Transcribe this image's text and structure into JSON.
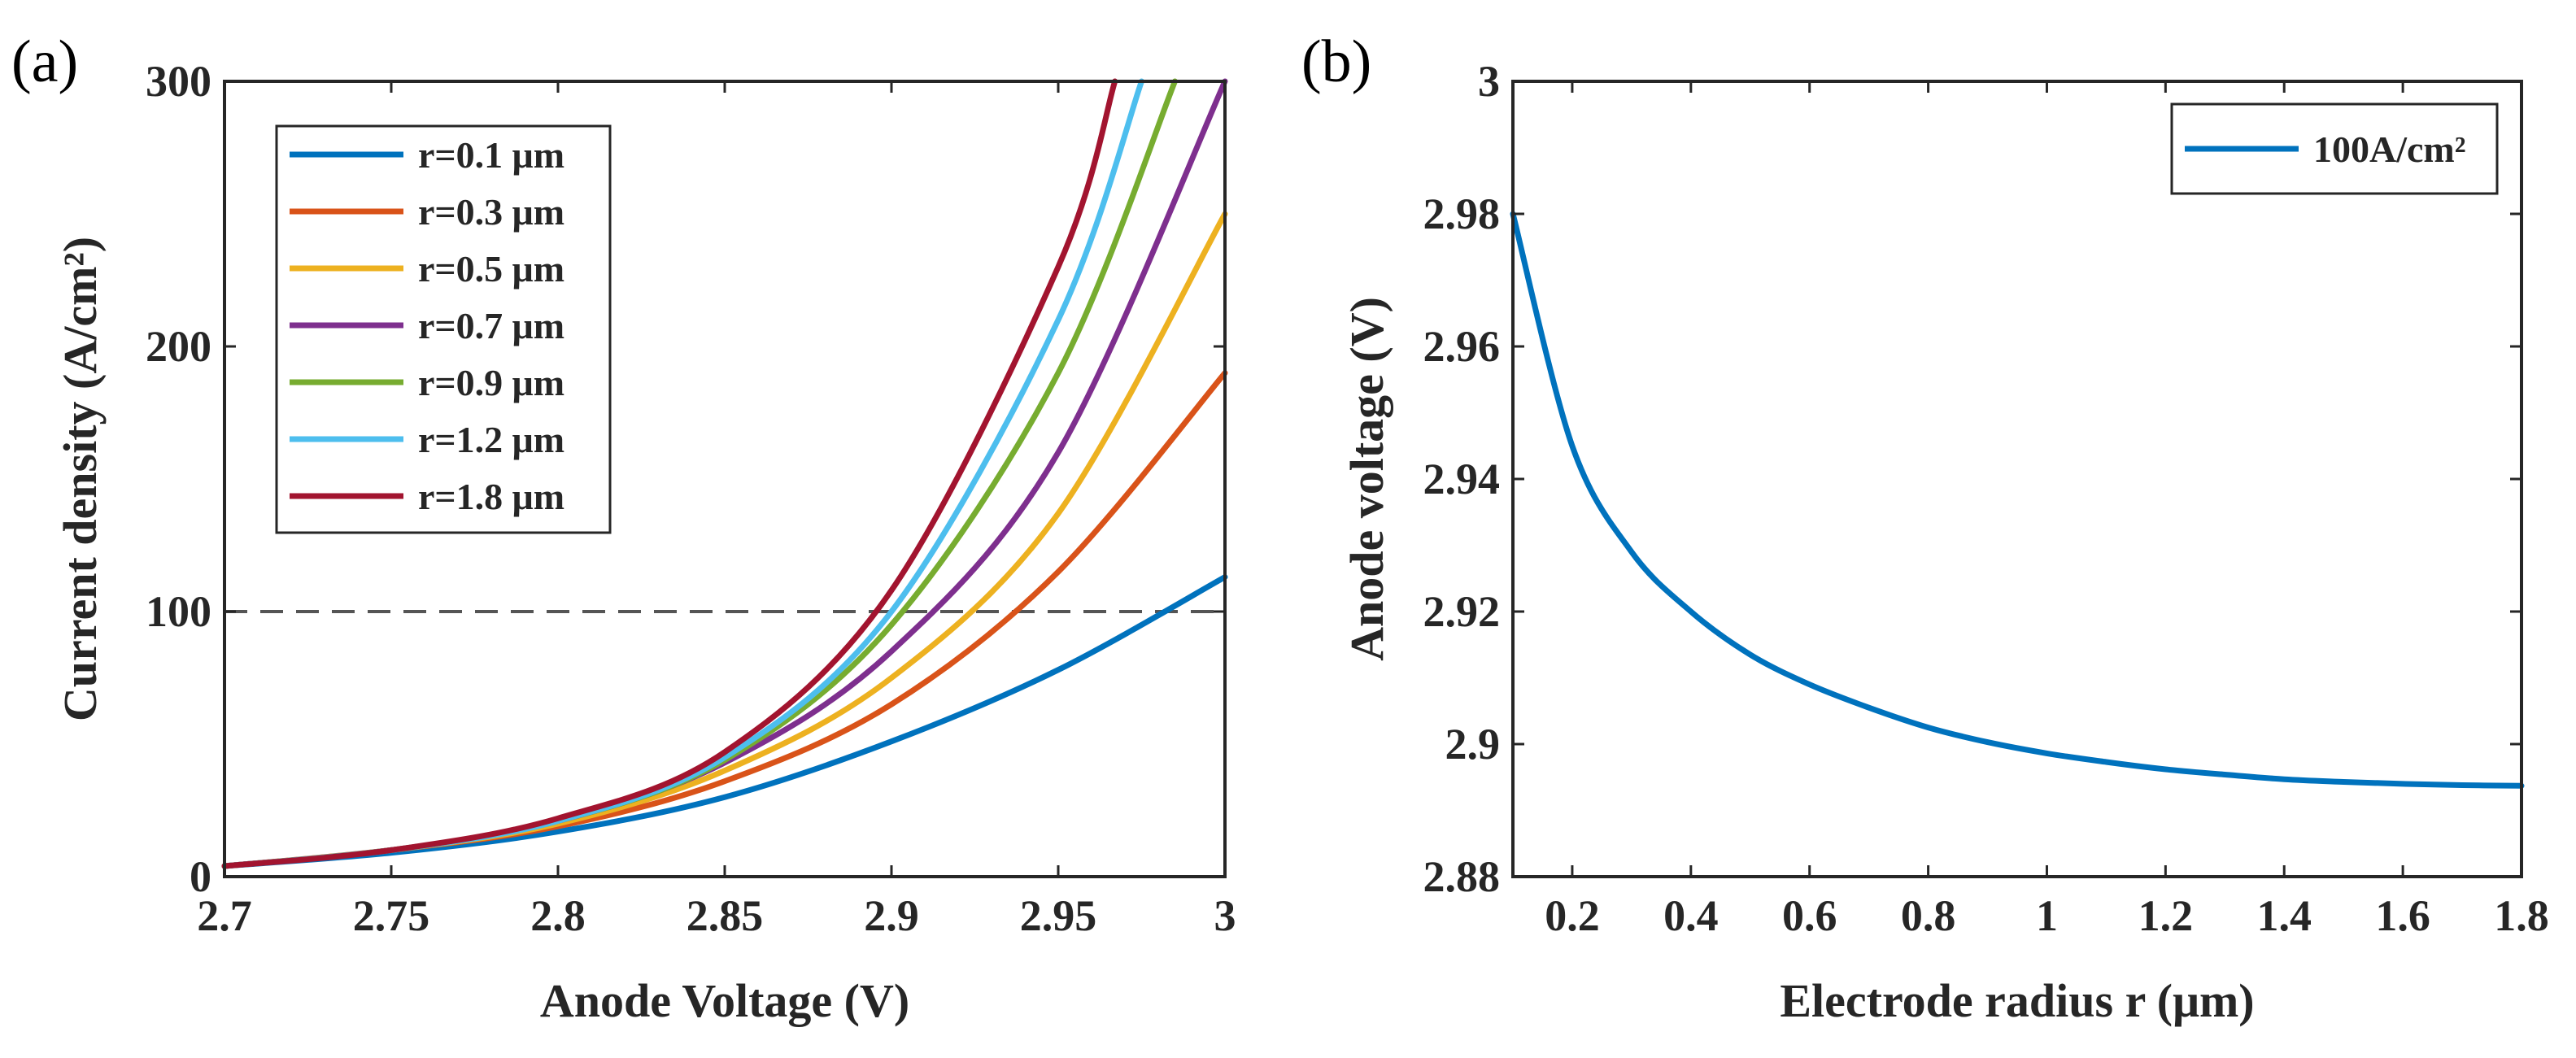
{
  "chart_data": [
    {
      "panel_label": "(a)",
      "type": "line",
      "xlabel": "Anode Voltage (V)",
      "ylabel": "Current density (A/cm²)",
      "xlim": [
        2.7,
        3.0
      ],
      "ylim": [
        0,
        300
      ],
      "xticks": [
        "2.7",
        "2.75",
        "2.8",
        "2.85",
        "2.9",
        "2.95",
        "3"
      ],
      "yticks": [
        "0",
        "100",
        "200",
        "300"
      ],
      "reference_line": {
        "y": 100,
        "style": "dashed",
        "color": "#555555"
      },
      "legend_placement": "top-left",
      "series": [
        {
          "name": "r=0.1 μm",
          "color": "#0072BD",
          "x": [
            2.7,
            2.75,
            2.8,
            2.85,
            2.9,
            2.95,
            3.0
          ],
          "values": [
            4,
            9,
            17,
            30,
            51,
            78,
            113
          ]
        },
        {
          "name": "r=0.3 μm",
          "color": "#D95319",
          "x": [
            2.7,
            2.75,
            2.8,
            2.85,
            2.9,
            2.95,
            3.0
          ],
          "values": [
            4,
            10,
            19,
            36,
            65,
            115,
            190
          ]
        },
        {
          "name": "r=0.5 μm",
          "color": "#EDB120",
          "x": [
            2.7,
            2.75,
            2.8,
            2.85,
            2.9,
            2.95,
            3.0
          ],
          "values": [
            4,
            10,
            20,
            40,
            75,
            137,
            250
          ]
        },
        {
          "name": "r=0.7 μm",
          "color": "#7E2F8E",
          "x": [
            2.7,
            2.75,
            2.8,
            2.85,
            2.9,
            2.95,
            3.0
          ],
          "values": [
            4,
            10,
            21,
            43,
            85,
            160,
            300
          ]
        },
        {
          "name": "r=0.9 μm",
          "color": "#77AC30",
          "x": [
            2.7,
            2.75,
            2.8,
            2.85,
            2.9,
            2.95,
            2.985
          ],
          "values": [
            4,
            10,
            21,
            44,
            95,
            190,
            300
          ]
        },
        {
          "name": "r=1.2 μm",
          "color": "#4DBEEE",
          "x": [
            2.7,
            2.75,
            2.8,
            2.85,
            2.9,
            2.95,
            2.975
          ],
          "values": [
            4,
            10,
            21,
            45,
            100,
            210,
            300
          ]
        },
        {
          "name": "r=1.8 μm",
          "color": "#A2142F",
          "x": [
            2.7,
            2.75,
            2.8,
            2.85,
            2.9,
            2.95,
            2.967
          ],
          "values": [
            4,
            10,
            22,
            47,
            108,
            230,
            300
          ]
        }
      ]
    },
    {
      "panel_label": "(b)",
      "type": "line",
      "xlabel": "Electrode radius r (μm)",
      "ylabel": "Anode voltage (V)",
      "xlim": [
        0.1,
        1.8
      ],
      "ylim": [
        2.88,
        3.0
      ],
      "xticks": [
        "0.2",
        "0.4",
        "0.6",
        "0.8",
        "1",
        "1.2",
        "1.4",
        "1.6",
        "1.8"
      ],
      "yticks": [
        "2.88",
        "2.9",
        "2.92",
        "2.94",
        "2.96",
        "2.98",
        "3"
      ],
      "legend_placement": "top-right",
      "series": [
        {
          "name": "100A/cm²",
          "color": "#0072BD",
          "x": [
            0.1,
            0.2,
            0.3,
            0.4,
            0.5,
            0.6,
            0.7,
            0.8,
            0.9,
            1.0,
            1.1,
            1.2,
            1.3,
            1.4,
            1.5,
            1.6,
            1.7,
            1.8
          ],
          "values": [
            2.98,
            2.945,
            2.929,
            2.92,
            2.9135,
            2.909,
            2.9055,
            2.9025,
            2.9003,
            2.8986,
            2.8973,
            2.8962,
            2.8954,
            2.8947,
            2.8943,
            2.894,
            2.8938,
            2.8937
          ]
        }
      ]
    }
  ]
}
